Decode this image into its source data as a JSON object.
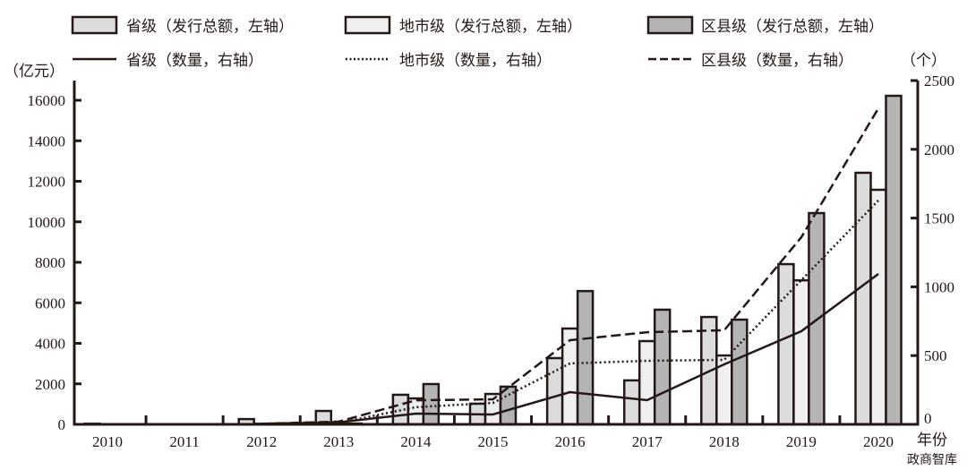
{
  "chart_data": {
    "type": "bar+line",
    "title": "",
    "categories": [
      "2010",
      "2011",
      "2012",
      "2013",
      "2014",
      "2015",
      "2016",
      "2017",
      "2018",
      "2019",
      "2020"
    ],
    "xlabel": "年份",
    "ylabel_left": "（亿元）",
    "ylabel_right": "（个）",
    "ylim_left": [
      0,
      16000
    ],
    "ylim_right": [
      0,
      2500
    ],
    "yticks_left": [
      "0",
      "2000",
      "4000",
      "6000",
      "8000",
      "10000",
      "12000",
      "14000",
      "16000"
    ],
    "yticks_right": [
      "0",
      "500",
      "1000",
      "1500",
      "2000",
      "2500"
    ],
    "grid": false,
    "legend_position": "top",
    "bar_series": [
      {
        "name": "省级（发行总额，左轴）",
        "axis": "left",
        "color": "#dcdcdc",
        "values": [
          30,
          0,
          260,
          660,
          1460,
          1020,
          3270,
          2170,
          5300,
          7910,
          12420
        ]
      },
      {
        "name": "地市级（发行总额，左轴）",
        "axis": "left",
        "color": "#efefef",
        "values": [
          0,
          0,
          30,
          60,
          1280,
          1500,
          4730,
          4110,
          3400,
          7110,
          11580
        ]
      },
      {
        "name": "区县级（发行总额，左轴）",
        "axis": "left",
        "color": "#b4b4b4",
        "values": [
          0,
          0,
          20,
          40,
          1990,
          1860,
          6580,
          5660,
          5170,
          10430,
          16220
        ]
      }
    ],
    "line_series": [
      {
        "name": "省级（数量，右轴）",
        "axis": "right",
        "style": "solid",
        "values": [
          0,
          0,
          5,
          15,
          78,
          72,
          234,
          176,
          436,
          677,
          1094
        ]
      },
      {
        "name": "地市级（数量，右轴）",
        "axis": "right",
        "style": "dotted",
        "values": [
          0,
          0,
          3,
          10,
          125,
          156,
          443,
          462,
          469,
          1048,
          1628
        ]
      },
      {
        "name": "区县级（数量，右轴）",
        "axis": "right",
        "style": "dashed",
        "values": [
          0,
          0,
          4,
          20,
          175,
          182,
          612,
          670,
          684,
          1360,
          2298
        ]
      }
    ]
  },
  "legend": {
    "items": [
      {
        "label": "省级（发行总额，左轴）",
        "kind": "bar",
        "color": "#dcdcdc"
      },
      {
        "label": "地市级（发行总额，左轴）",
        "kind": "bar",
        "color": "#efefef"
      },
      {
        "label": "区县级（发行总额，左轴）",
        "kind": "bar",
        "color": "#b4b4b4"
      },
      {
        "label": "省级（数量，右轴）",
        "kind": "line",
        "style": "solid"
      },
      {
        "label": "地市级（数量，右轴）",
        "kind": "line",
        "style": "dotted"
      },
      {
        "label": "区县级（数量，右轴）",
        "kind": "line",
        "style": "dashed"
      }
    ]
  },
  "watermark": "政商智库",
  "colors": {
    "ink": "#231815"
  }
}
